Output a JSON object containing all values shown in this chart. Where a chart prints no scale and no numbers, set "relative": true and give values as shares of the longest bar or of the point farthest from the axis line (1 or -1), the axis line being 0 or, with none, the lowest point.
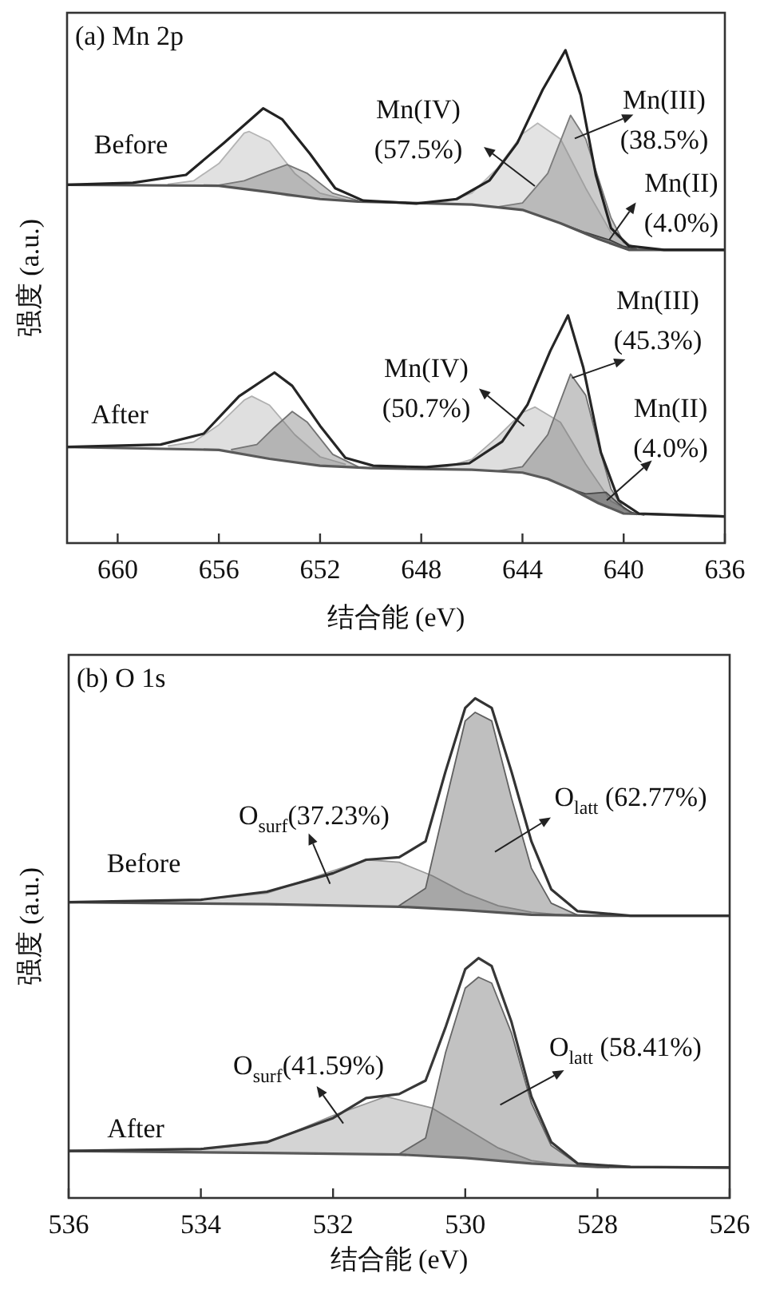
{
  "chart_data": [
    {
      "type": "line",
      "relative": true,
      "title": "(a) Mn 2p",
      "xlabel": "结合能 (eV)",
      "ylabel": "强度 (a.u.)",
      "xlim": [
        662,
        636
      ],
      "xticks": [
        660,
        656,
        652,
        648,
        644,
        640,
        636
      ],
      "annotations": [
        "Before",
        "Mn(IV)\n(57.5%)",
        "Mn(III)\n(38.5%)",
        "Mn(II)\n(4.0%)",
        "After",
        "Mn(IV)\n(50.7%)",
        "Mn(III)\n(45.3%)",
        "Mn(II)\n(4.0%)"
      ],
      "series": [
        {
          "type": "line",
          "color": "#b4b4b4",
          "x": [
            658,
            657,
            656,
            655,
            654.8,
            654,
            653,
            652,
            651
          ],
          "values": [
            0.728,
            0.735,
            0.77,
            0.832,
            0.835,
            0.815,
            0.75,
            0.71,
            0.697
          ],
          "upper": [
            0.728,
            0.735,
            0.77,
            0.832,
            0.835,
            0.815,
            0.75,
            0.71,
            0.697
          ],
          "lower": [
            0.726,
            0.726,
            0.725,
            0.718,
            0.717,
            0.712,
            0.705,
            0.698,
            0.695
          ]
        },
        {
          "type": "line",
          "color": "#787878",
          "x": [
            656,
            655,
            654,
            653.3,
            652.5,
            651.5,
            650.5
          ],
          "values": [
            0.726,
            0.735,
            0.755,
            0.768,
            0.75,
            0.71,
            0.695
          ],
          "upper": [
            0.726,
            0.735,
            0.755,
            0.768,
            0.75,
            0.71,
            0.695
          ],
          "lower": [
            0.725,
            0.718,
            0.712,
            0.703,
            0.701,
            0.696,
            0.693
          ]
        },
        {
          "type": "line",
          "color": "#b8b8b8",
          "x": [
            648,
            647,
            646,
            645,
            644,
            643.4,
            642.5,
            641.5,
            640.5,
            639.5
          ],
          "values": [
            0.69,
            0.693,
            0.71,
            0.76,
            0.83,
            0.852,
            0.82,
            0.72,
            0.63,
            0.597
          ],
          "upper": [
            0.69,
            0.693,
            0.71,
            0.76,
            0.83,
            0.852,
            0.82,
            0.72,
            0.63,
            0.597
          ],
          "lower": [
            0.69,
            0.688,
            0.687,
            0.682,
            0.676,
            0.665,
            0.649,
            0.628,
            0.608,
            0.595
          ]
        },
        {
          "type": "line",
          "color": "#7c7c7c",
          "x": [
            645,
            644,
            643,
            642.1,
            641.5,
            641,
            640.5,
            640,
            639.5
          ],
          "values": [
            0.682,
            0.69,
            0.75,
            0.868,
            0.82,
            0.74,
            0.66,
            0.61,
            0.597
          ],
          "upper": [
            0.682,
            0.69,
            0.75,
            0.868,
            0.82,
            0.74,
            0.66,
            0.61,
            0.597
          ],
          "lower": [
            0.682,
            0.676,
            0.658,
            0.64,
            0.628,
            0.617,
            0.608,
            0.599,
            0.595
          ]
        },
        {
          "type": "line",
          "color": "#404040",
          "x": [
            642.5,
            641.5,
            641,
            640.5,
            640,
            639.5
          ],
          "values": [
            0.649,
            0.63,
            0.622,
            0.614,
            0.602,
            0.596
          ],
          "upper": [
            0.649,
            0.63,
            0.622,
            0.614,
            0.602,
            0.596
          ],
          "lower": [
            0.649,
            0.628,
            0.617,
            0.608,
            0.599,
            0.595
          ]
        },
        {
          "type": "line",
          "color": "#555555",
          "x": [
            662,
            656,
            654,
            652,
            650.5,
            646,
            644,
            642.5,
            641,
            639.8,
            636
          ],
          "values": [
            0.727,
            0.725,
            0.712,
            0.698,
            0.693,
            0.687,
            0.676,
            0.649,
            0.617,
            0.595,
            0.595
          ]
        },
        {
          "type": "line",
          "color": "#222222",
          "x": [
            662,
            659.4,
            657.3,
            655.8,
            654.25,
            653.5,
            652.4,
            651.4,
            650.3,
            648.2,
            646.6,
            645.3,
            644.2,
            643.2,
            642.3,
            641.7,
            641.1,
            640.5,
            639.8,
            638.4,
            636.05
          ],
          "values": [
            0.727,
            0.731,
            0.747,
            0.812,
            0.882,
            0.86,
            0.79,
            0.72,
            0.695,
            0.689,
            0.698,
            0.736,
            0.812,
            0.92,
            1,
            0.909,
            0.747,
            0.639,
            0.603,
            0.595,
            0.595
          ]
        },
        {
          "type": "line",
          "color": "#b0b0b0",
          "x": [
            658,
            657,
            656,
            655,
            654.7,
            654,
            653,
            652,
            651
          ],
          "values": [
            0.197,
            0.205,
            0.24,
            0.29,
            0.298,
            0.28,
            0.22,
            0.175,
            0.16
          ],
          "upper": [
            0.197,
            0.205,
            0.24,
            0.29,
            0.298,
            0.28,
            0.22,
            0.175,
            0.16
          ],
          "lower": [
            0.193,
            0.191,
            0.189,
            0.18,
            0.178,
            0.171,
            0.164,
            0.157,
            0.155
          ]
        },
        {
          "type": "line",
          "color": "#747474",
          "x": [
            655.5,
            654.5,
            653.8,
            653.1,
            652.5,
            651.5,
            650.5
          ],
          "values": [
            0.19,
            0.2,
            0.235,
            0.267,
            0.245,
            0.18,
            0.155
          ],
          "upper": [
            0.19,
            0.2,
            0.235,
            0.267,
            0.245,
            0.18,
            0.155
          ],
          "lower": [
            0.185,
            0.175,
            0.17,
            0.165,
            0.161,
            0.156,
            0.153
          ]
        },
        {
          "type": "line",
          "color": "#acacac",
          "x": [
            648,
            647,
            646,
            645,
            644,
            643.5,
            642.5,
            641.5,
            640.5,
            639.5
          ],
          "values": [
            0.152,
            0.155,
            0.17,
            0.215,
            0.265,
            0.276,
            0.245,
            0.16,
            0.085,
            0.058
          ],
          "upper": [
            0.152,
            0.155,
            0.17,
            0.215,
            0.265,
            0.276,
            0.245,
            0.16,
            0.085,
            0.058
          ],
          "lower": [
            0.151,
            0.15,
            0.149,
            0.146,
            0.143,
            0.137,
            0.119,
            0.094,
            0.07,
            0.058
          ]
        },
        {
          "type": "line",
          "color": "#707070",
          "x": [
            645,
            644,
            643,
            642.1,
            641.5,
            641,
            640.5,
            640,
            639.5
          ],
          "values": [
            0.146,
            0.155,
            0.22,
            0.343,
            0.3,
            0.2,
            0.11,
            0.07,
            0.058
          ],
          "upper": [
            0.146,
            0.155,
            0.22,
            0.343,
            0.3,
            0.2,
            0.11,
            0.07,
            0.058
          ],
          "lower": [
            0.146,
            0.143,
            0.13,
            0.11,
            0.094,
            0.081,
            0.07,
            0.06,
            0.058
          ]
        },
        {
          "type": "line",
          "color": "#484848",
          "x": [
            642,
            641.5,
            640.7,
            640.2,
            639.7,
            639.2
          ],
          "values": [
            0.108,
            0.1,
            0.103,
            0.08,
            0.062,
            0.057
          ],
          "upper": [
            0.108,
            0.1,
            0.103,
            0.08,
            0.062,
            0.057
          ],
          "lower": [
            0.108,
            0.094,
            0.075,
            0.064,
            0.059,
            0.057
          ]
        },
        {
          "type": "line",
          "color": "#5a5a5a",
          "x": [
            662,
            656,
            654,
            652,
            650,
            646,
            644,
            643,
            642,
            641,
            640,
            636
          ],
          "values": [
            0.195,
            0.189,
            0.171,
            0.157,
            0.152,
            0.149,
            0.143,
            0.13,
            0.108,
            0.081,
            0.06,
            0.054
          ]
        },
        {
          "type": "line",
          "color": "#262626",
          "x": [
            662,
            658.3,
            656.6,
            655.2,
            653.8,
            653.1,
            652,
            651,
            649.9,
            647.8,
            646.1,
            644.8,
            643.8,
            642.9,
            642.2,
            641.6,
            640.9,
            640.2,
            639.4,
            636.05
          ],
          "values": [
            0.195,
            0.2,
            0.222,
            0.298,
            0.346,
            0.319,
            0.238,
            0.173,
            0.157,
            0.154,
            0.162,
            0.206,
            0.281,
            0.39,
            0.462,
            0.357,
            0.184,
            0.087,
            0.06,
            0.054
          ]
        }
      ]
    },
    {
      "type": "line",
      "relative": true,
      "title": "(b) O 1s",
      "xlabel": "结合能 (eV)",
      "ylabel": "强度 (a.u.)",
      "xlim": [
        536,
        526
      ],
      "xticks": [
        536,
        534,
        532,
        530,
        528,
        526
      ],
      "annotations": [
        "Before",
        "O$_{surf}$(37.23%)",
        "O$_{latt}$ (62.77%)",
        "After",
        "O$_{surf}$(41.59%)",
        "O$_{latt}$ (58.41%)"
      ],
      "series": [
        {
          "type": "line",
          "color": "#9a9a9a",
          "x": [
            535,
            534,
            533,
            532,
            531.5,
            531,
            530.5,
            530,
            529.5,
            529,
            528.5
          ],
          "values": [
            0.594,
            0.597,
            0.61,
            0.655,
            0.677,
            0.672,
            0.645,
            0.61,
            0.585,
            0.572,
            0.566
          ],
          "upper": [
            0.594,
            0.597,
            0.61,
            0.655,
            0.677,
            0.672,
            0.645,
            0.61,
            0.585,
            0.572,
            0.566
          ],
          "lower": [
            0.591,
            0.589,
            0.588,
            0.586,
            0.585,
            0.583,
            0.58,
            0.576,
            0.571,
            0.567,
            0.566
          ]
        },
        {
          "type": "line",
          "color": "#606060",
          "x": [
            531,
            530.6,
            530.3,
            530,
            529.85,
            529.6,
            529.3,
            529,
            528.7,
            528.3
          ],
          "values": [
            0.585,
            0.62,
            0.79,
            0.955,
            0.972,
            0.955,
            0.8,
            0.66,
            0.59,
            0.566
          ],
          "upper": [
            0.585,
            0.62,
            0.79,
            0.955,
            0.972,
            0.955,
            0.8,
            0.66,
            0.59,
            0.566
          ],
          "lower": [
            0.583,
            0.58,
            0.578,
            0.576,
            0.575,
            0.573,
            0.57,
            0.567,
            0.566,
            0.565
          ]
        },
        {
          "type": "line",
          "color": "#555555",
          "x": [
            536,
            533,
            531,
            530,
            529,
            528,
            526
          ],
          "values": [
            0.592,
            0.588,
            0.583,
            0.576,
            0.567,
            0.565,
            0.565
          ]
        },
        {
          "type": "line",
          "color": "#333333",
          "x": [
            536,
            534,
            533,
            532,
            531.5,
            531,
            530.6,
            530.3,
            530,
            529.85,
            529.6,
            529.3,
            529,
            528.7,
            528.3,
            527.5,
            526
          ],
          "values": [
            0.592,
            0.597,
            0.613,
            0.65,
            0.677,
            0.682,
            0.714,
            0.853,
            0.981,
            1,
            0.981,
            0.853,
            0.714,
            0.618,
            0.574,
            0.565,
            0.565
          ]
        },
        {
          "type": "line",
          "color": "#949494",
          "x": [
            535,
            534,
            533,
            532,
            531.2,
            530.5,
            530,
            529.5,
            529,
            528.5
          ],
          "values": [
            0.095,
            0.098,
            0.11,
            0.165,
            0.203,
            0.18,
            0.14,
            0.1,
            0.075,
            0.066
          ],
          "upper": [
            0.095,
            0.098,
            0.11,
            0.165,
            0.203,
            0.18,
            0.14,
            0.1,
            0.075,
            0.066
          ],
          "lower": [
            0.093,
            0.092,
            0.09,
            0.089,
            0.088,
            0.084,
            0.08,
            0.075,
            0.069,
            0.066
          ]
        },
        {
          "type": "line",
          "color": "#666666",
          "x": [
            531,
            530.6,
            530.3,
            530,
            529.8,
            529.6,
            529.3,
            529,
            528.7,
            528.3
          ],
          "values": [
            0.088,
            0.12,
            0.29,
            0.42,
            0.442,
            0.43,
            0.33,
            0.19,
            0.105,
            0.068
          ],
          "upper": [
            0.088,
            0.12,
            0.29,
            0.42,
            0.442,
            0.43,
            0.33,
            0.19,
            0.105,
            0.068
          ],
          "lower": [
            0.087,
            0.084,
            0.082,
            0.08,
            0.078,
            0.076,
            0.072,
            0.069,
            0.067,
            0.064
          ]
        },
        {
          "type": "line",
          "color": "#5a5a5a",
          "x": [
            536,
            533,
            531,
            530,
            529,
            528,
            526
          ],
          "values": [
            0.094,
            0.09,
            0.087,
            0.08,
            0.069,
            0.062,
            0.061
          ]
        },
        {
          "type": "line",
          "color": "#383838",
          "x": [
            536,
            534,
            533,
            532,
            531.5,
            531,
            530.6,
            530.3,
            530,
            529.8,
            529.6,
            529.3,
            529,
            528.7,
            528.3,
            527.5,
            526
          ],
          "values": [
            0.094,
            0.098,
            0.112,
            0.16,
            0.2,
            0.208,
            0.235,
            0.341,
            0.458,
            0.48,
            0.464,
            0.352,
            0.203,
            0.112,
            0.069,
            0.062,
            0.061
          ]
        }
      ]
    }
  ]
}
